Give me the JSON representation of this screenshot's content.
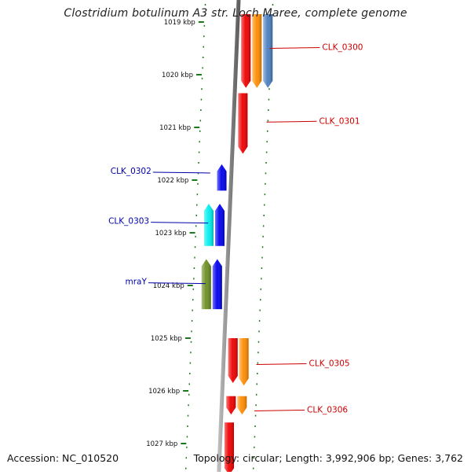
{
  "title": "Clostridium botulinum A3 str. Loch Maree, complete genome",
  "footer": {
    "accession": "Accession: NC_010520",
    "topology": "Topology: circular; Length: 3,992,906 bp; Genes: 3,762"
  },
  "colors": {
    "forward_label": "#cc0000",
    "reverse_label": "#0000aa",
    "tick": "#1a7a1a",
    "backbone": "#8a8a8a"
  },
  "scale": {
    "unit": "kbp",
    "ticks": [
      {
        "kbp": 1019,
        "label": "1019 kbp"
      },
      {
        "kbp": 1020,
        "label": "1020 kbp"
      },
      {
        "kbp": 1021,
        "label": "1021 kbp"
      },
      {
        "kbp": 1022,
        "label": "1022 kbp"
      },
      {
        "kbp": 1023,
        "label": "1023 kbp"
      },
      {
        "kbp": 1024,
        "label": "1024 kbp"
      },
      {
        "kbp": 1025,
        "label": "1025 kbp"
      },
      {
        "kbp": 1026,
        "label": "1026 kbp"
      },
      {
        "kbp": 1027,
        "label": "1027 kbp"
      }
    ]
  },
  "features": [
    {
      "strand": "+",
      "start": 1018.85,
      "end": 1020.25,
      "track": 1,
      "color": "#ee0000"
    },
    {
      "strand": "+",
      "start": 1018.85,
      "end": 1020.25,
      "track": 2,
      "color": "#ff8c00"
    },
    {
      "strand": "+",
      "start": 1018.85,
      "end": 1020.25,
      "track": 3,
      "color": "#4a7fc0"
    },
    {
      "strand": "+",
      "start": 1020.35,
      "end": 1021.5,
      "track": 1,
      "color": "#ee0000"
    },
    {
      "strand": "-",
      "start": 1021.7,
      "end": 1022.2,
      "track": 1,
      "color": "#0000ee"
    },
    {
      "strand": "-",
      "start": 1022.45,
      "end": 1023.25,
      "track": 1,
      "color": "#0000ee"
    },
    {
      "strand": "-",
      "start": 1022.45,
      "end": 1023.25,
      "track": 2,
      "color": "#00eeee"
    },
    {
      "strand": "-",
      "start": 1023.5,
      "end": 1024.45,
      "track": 1,
      "color": "#0000ee"
    },
    {
      "strand": "-",
      "start": 1023.5,
      "end": 1024.45,
      "track": 2,
      "color": "#6b8e23"
    },
    {
      "strand": "+",
      "start": 1025.0,
      "end": 1025.85,
      "track": 1,
      "color": "#ee0000"
    },
    {
      "strand": "+",
      "start": 1025.0,
      "end": 1025.9,
      "track": 2,
      "color": "#ff8c00"
    },
    {
      "strand": "+",
      "start": 1026.1,
      "end": 1026.45,
      "track": 1,
      "color": "#ee0000"
    },
    {
      "strand": "+",
      "start": 1026.1,
      "end": 1026.45,
      "track": 2,
      "color": "#ff8c00"
    },
    {
      "strand": "+",
      "start": 1026.6,
      "end": 1027.6,
      "track": 1,
      "color": "#ee0000"
    }
  ],
  "labels": [
    {
      "text": "CLK_0300",
      "side": "right",
      "kbp": 1019.5
    },
    {
      "text": "CLK_0301",
      "side": "right",
      "kbp": 1020.9
    },
    {
      "text": "CLK_0302",
      "side": "left",
      "kbp": 1021.85
    },
    {
      "text": "CLK_0303",
      "side": "left",
      "kbp": 1022.8
    },
    {
      "text": "mraY",
      "side": "left",
      "kbp": 1023.95
    },
    {
      "text": "CLK_0305",
      "side": "right",
      "kbp": 1025.5
    },
    {
      "text": "CLK_0306",
      "side": "right",
      "kbp": 1026.38
    }
  ]
}
